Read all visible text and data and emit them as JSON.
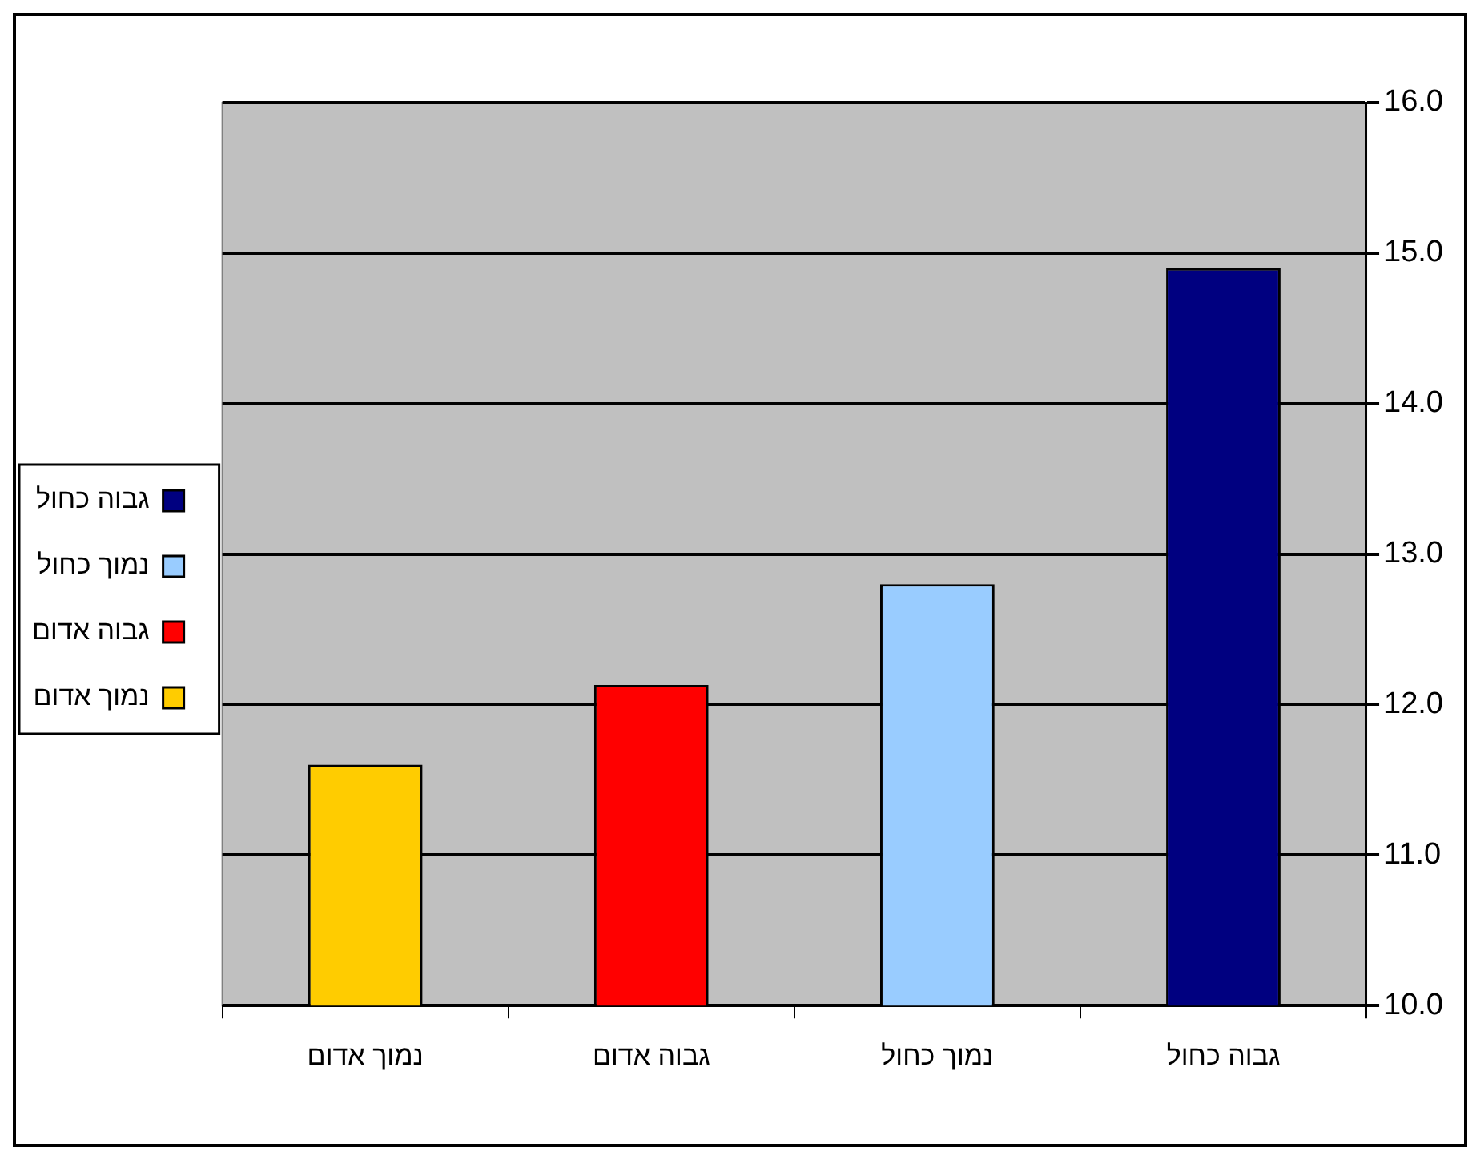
{
  "chart_data": {
    "type": "bar",
    "categories": [
      "נמוך אדום",
      "גבוה אדום",
      "נמוך כחול",
      "גבוה כחול"
    ],
    "series": [
      {
        "name": "נמוך אדום",
        "color": "#ffcc00",
        "values": [
          11.6,
          null,
          null,
          null
        ]
      },
      {
        "name": "גבוה אדום",
        "color": "#ff0000",
        "values": [
          null,
          12.13,
          null,
          null
        ]
      },
      {
        "name": "נמוך כחול",
        "color": "#99ccff",
        "values": [
          null,
          null,
          12.8,
          null
        ]
      },
      {
        "name": "גבוה כחול",
        "color": "#000080",
        "values": [
          null,
          null,
          null,
          14.9
        ]
      }
    ],
    "ylim": [
      10,
      16
    ],
    "yticks": [
      {
        "value": 10,
        "label": "10.0"
      },
      {
        "value": 11,
        "label": "11.0"
      },
      {
        "value": 12,
        "label": "12.0"
      },
      {
        "value": 13,
        "label": "13.0"
      },
      {
        "value": 14,
        "label": "14.0"
      },
      {
        "value": 15,
        "label": "15.0"
      },
      {
        "value": 16,
        "label": "16.0"
      }
    ],
    "grid": "y",
    "legend": "left"
  }
}
